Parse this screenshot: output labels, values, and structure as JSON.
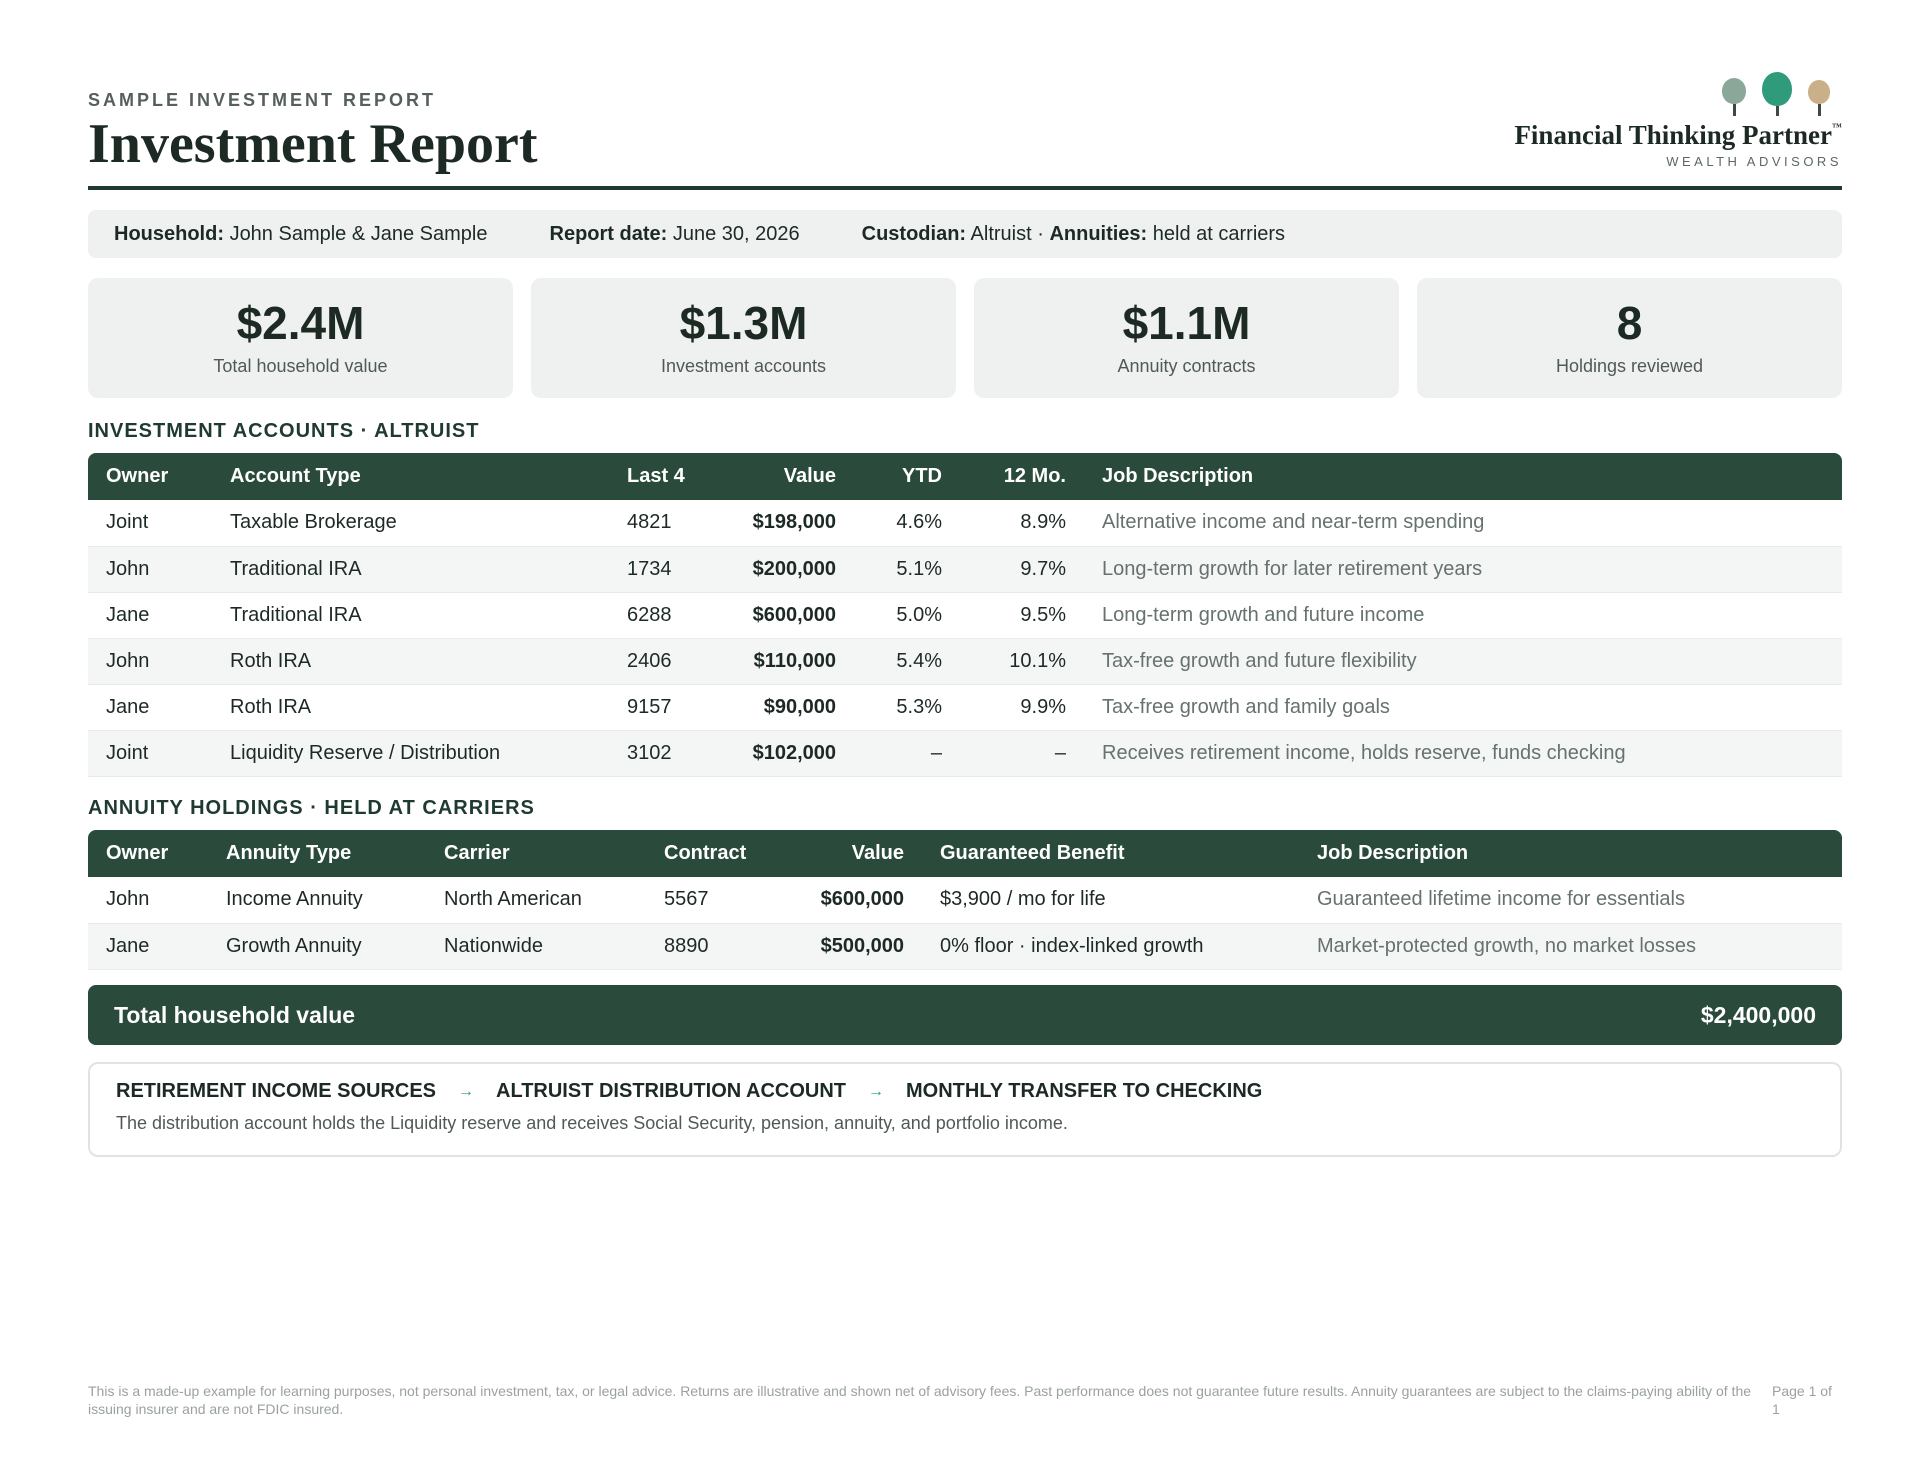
{
  "header": {
    "eyebrow": "SAMPLE INVESTMENT REPORT",
    "title": "Investment Report",
    "brand_name": "Financial Thinking Partner",
    "brand_tm": "™",
    "brand_sub": "WEALTH ADVISORS",
    "tree_colors": [
      "#8aa79a",
      "#2f9b7a",
      "#c9b089"
    ]
  },
  "info": {
    "household_label": "Household:",
    "household_value": "John Sample & Jane Sample",
    "report_date_label": "Report date:",
    "report_date_value": "June 30, 2026",
    "custodian_label": "Custodian:",
    "custodian_value": "Altruist ·",
    "annuities_label": "Annuities:",
    "annuities_value": "held at carriers"
  },
  "kpis": [
    {
      "value": "$2.4M",
      "label": "Total household value"
    },
    {
      "value": "$1.3M",
      "label": "Investment accounts"
    },
    {
      "value": "$1.1M",
      "label": "Annuity contracts"
    },
    {
      "value": "8",
      "label": "Holdings reviewed"
    }
  ],
  "investment": {
    "heading": "INVESTMENT ACCOUNTS · ALTRUIST",
    "columns": [
      "Owner",
      "Account Type",
      "Last 4",
      "Value",
      "YTD",
      "12 Mo.",
      "Job Description"
    ],
    "rows": [
      [
        "Joint",
        "Taxable Brokerage",
        "4821",
        "$198,000",
        "4.6%",
        "8.9%",
        "Alternative income and near-term spending"
      ],
      [
        "John",
        "Traditional IRA",
        "1734",
        "$200,000",
        "5.1%",
        "9.7%",
        "Long-term growth for later retirement years"
      ],
      [
        "Jane",
        "Traditional IRA",
        "6288",
        "$600,000",
        "5.0%",
        "9.5%",
        "Long-term growth and future income"
      ],
      [
        "John",
        "Roth IRA",
        "2406",
        "$110,000",
        "5.4%",
        "10.1%",
        "Tax-free growth and future flexibility"
      ],
      [
        "Jane",
        "Roth IRA",
        "9157",
        "$90,000",
        "5.3%",
        "9.9%",
        "Tax-free growth and family goals"
      ],
      [
        "Joint",
        "Liquidity Reserve / Distribution",
        "3102",
        "$102,000",
        "–",
        "–",
        "Receives retirement income, holds reserve, funds checking"
      ]
    ]
  },
  "annuity": {
    "heading": "ANNUITY HOLDINGS · HELD AT CARRIERS",
    "columns": [
      "Owner",
      "Annuity Type",
      "Carrier",
      "Contract",
      "Value",
      "Guaranteed Benefit",
      "Job Description"
    ],
    "rows": [
      [
        "John",
        "Income Annuity",
        "North American",
        "5567",
        "$600,000",
        "$3,900 / mo for life",
        "Guaranteed lifetime income for essentials"
      ],
      [
        "Jane",
        "Growth Annuity",
        "Nationwide",
        "8890",
        "$500,000",
        "0% floor · index-linked growth",
        "Market-protected growth, no market losses"
      ]
    ]
  },
  "total": {
    "label": "Total household value",
    "value": "$2,400,000"
  },
  "flow": {
    "steps": [
      "RETIREMENT INCOME SOURCES",
      "ALTRUIST DISTRIBUTION ACCOUNT",
      "MONTHLY TRANSFER TO CHECKING"
    ],
    "arrow": "→",
    "note": "The distribution account holds the Liquidity reserve and receives Social Security, pension, annuity, and portfolio income."
  },
  "footer": {
    "disclaimer": "This is a made-up example for learning purposes, not personal investment, tax, or legal advice. Returns are illustrative and shown net of advisory fees. Past performance does not guarantee future results. Annuity guarantees are subject to the claims-paying ability of the issuing insurer and are not FDIC insured.",
    "page": "Page 1 of 1"
  }
}
